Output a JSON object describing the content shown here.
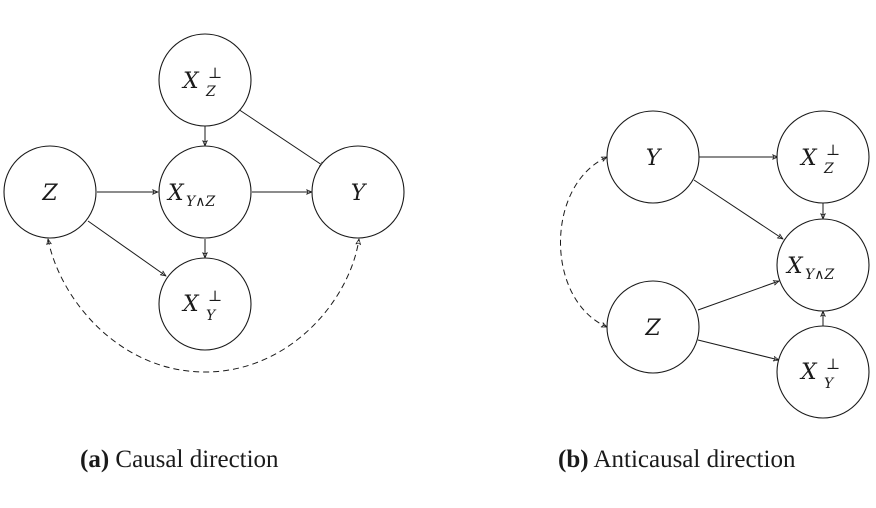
{
  "panel_a": {
    "caption_tag": "(a)",
    "caption_text": "Causal direction",
    "nodes": {
      "xz": {
        "base": "X",
        "sub": "Z",
        "sup": "⊥"
      },
      "z": {
        "base": "Z"
      },
      "xyz": {
        "base": "X",
        "sub": "Y∧Z"
      },
      "y": {
        "base": "Y"
      },
      "xy": {
        "base": "X",
        "sub": "Y",
        "sup": "⊥"
      }
    }
  },
  "panel_b": {
    "caption_tag": "(b)",
    "caption_text": "Anticausal direction",
    "nodes": {
      "y": {
        "base": "Y"
      },
      "xz": {
        "base": "X",
        "sub": "Z",
        "sup": "⊥"
      },
      "xyz": {
        "base": "X",
        "sub": "Y∧Z"
      },
      "z": {
        "base": "Z"
      },
      "xy": {
        "base": "X",
        "sub": "Y",
        "sup": "⊥"
      }
    }
  }
}
